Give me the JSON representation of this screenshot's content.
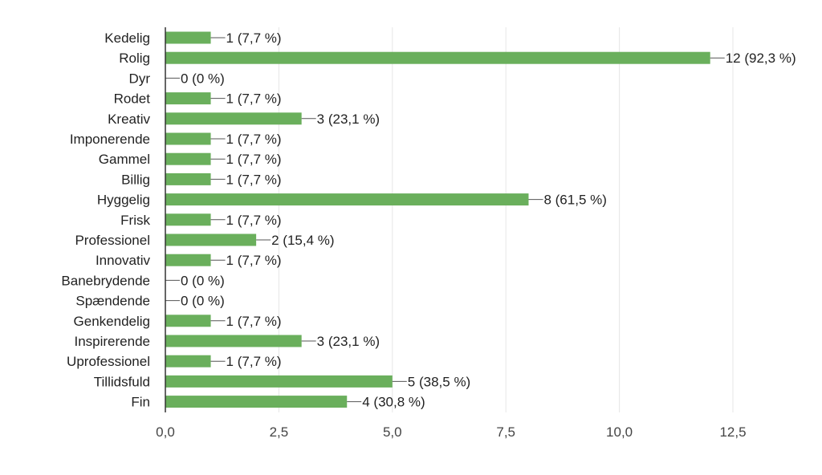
{
  "chart_data": {
    "type": "bar",
    "orientation": "horizontal",
    "title": "",
    "xlabel": "",
    "ylabel": "",
    "categories": [
      "Kedelig",
      "Rolig",
      "Dyr",
      "Rodet",
      "Kreativ",
      "Imponerende",
      "Gammel",
      "Billig",
      "Hyggelig",
      "Frisk",
      "Professionel",
      "Innovativ",
      "Banebrydende",
      "Spændende",
      "Genkendelig",
      "Inspirerende",
      "Uprofessionel",
      "Tillidsfuld",
      "Fin"
    ],
    "values": [
      1,
      12,
      0,
      1,
      3,
      1,
      1,
      1,
      8,
      1,
      2,
      1,
      0,
      0,
      1,
      3,
      1,
      5,
      4
    ],
    "value_labels": [
      "1 (7,7 %)",
      "12 (92,3 %)",
      "0 (0 %)",
      "1 (7,7 %)",
      "3 (23,1 %)",
      "1 (7,7 %)",
      "1 (7,7 %)",
      "1 (7,7 %)",
      "8 (61,5 %)",
      "1 (7,7 %)",
      "2 (15,4 %)",
      "1 (7,7 %)",
      "0 (0 %)",
      "0 (0 %)",
      "1 (7,7 %)",
      "3 (23,1 %)",
      "1 (7,7 %)",
      "5 (38,5 %)",
      "4 (30,8 %)"
    ],
    "xlim": [
      0,
      12.5
    ],
    "xticks": [
      0,
      2.5,
      5,
      7.5,
      10,
      12.5
    ],
    "xtick_labels": [
      "0,0",
      "2,5",
      "5,0",
      "7,5",
      "10,0",
      "12,5"
    ],
    "grid": true,
    "legend": "none",
    "colors": {
      "bar": "#6aaf5c",
      "grid": "#e6e6e6",
      "axis": "#333333",
      "leader": "#555555"
    }
  }
}
